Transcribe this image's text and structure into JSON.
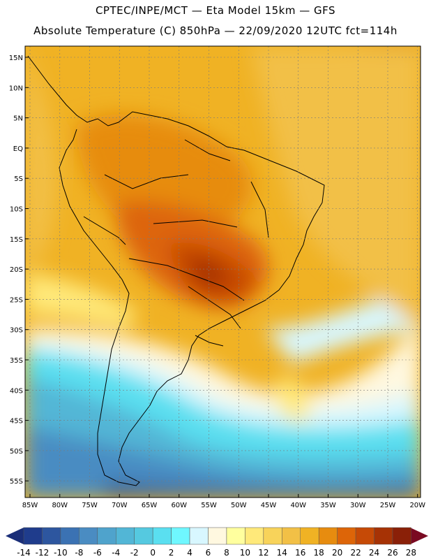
{
  "header": {
    "title_line1": "CPTEC/INPE/MCT —  Eta Model 15km — GFS",
    "title_line2": "Absolute Temperature (C) 850hPa — 22/09/2020 12UTC fct=114h"
  },
  "map": {
    "lat_labels": [
      "15N",
      "10N",
      "5N",
      "EQ",
      "5S",
      "10S",
      "15S",
      "20S",
      "25S",
      "30S",
      "35S",
      "40S",
      "45S",
      "50S",
      "55S"
    ],
    "lon_labels": [
      "85W",
      "80W",
      "75W",
      "70W",
      "65W",
      "60W",
      "55W",
      "50W",
      "45W",
      "40W",
      "35W",
      "30W",
      "25W",
      "20W"
    ]
  },
  "colorbar": {
    "labels": [
      "-14",
      "-12",
      "-10",
      "-8",
      "-6",
      "-4",
      "-2",
      "0",
      "2",
      "4",
      "6",
      "8",
      "10",
      "12",
      "14",
      "16",
      "18",
      "20",
      "22",
      "24",
      "26",
      "28"
    ],
    "colors": [
      "#1f3c8c",
      "#2d569f",
      "#3b72b3",
      "#4a8cc2",
      "#4fa3cc",
      "#52b6d6",
      "#55c9e0",
      "#5adff0",
      "#6ff7ff",
      "#d8f7ff",
      "#fff8e0",
      "#ffff9e",
      "#ffe97a",
      "#f8d35a",
      "#f2c046",
      "#f0b224",
      "#e78c0f",
      "#dd6508",
      "#c64a06",
      "#a63205",
      "#8a2008"
    ],
    "low_arrow_color": "#1a2e78",
    "high_arrow_color": "#7a0a22"
  }
}
